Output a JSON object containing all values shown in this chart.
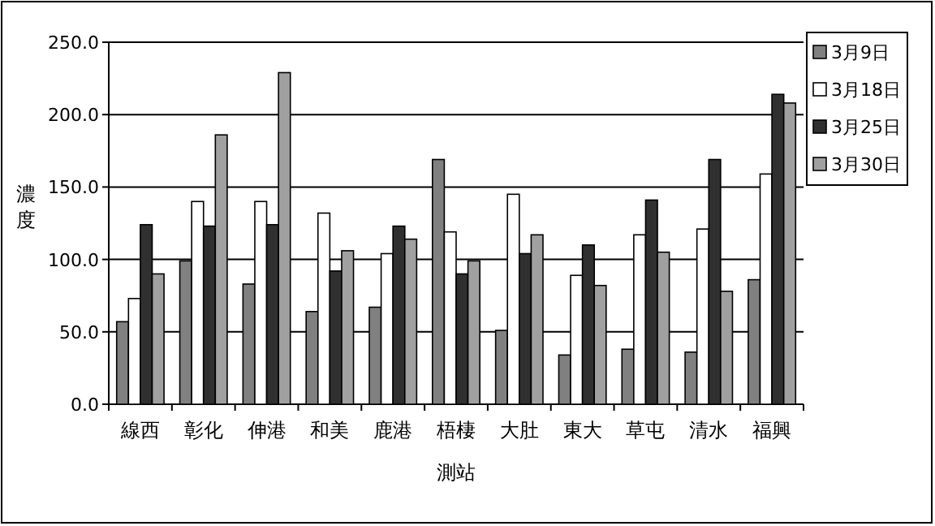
{
  "chart_data": {
    "type": "bar",
    "xlabel": "測站",
    "ylabel": "濃度",
    "categories": [
      "線西",
      "彰化",
      "伸港",
      "和美",
      "鹿港",
      "梧棲",
      "大肚",
      "東大",
      "草屯",
      "清水",
      "福興"
    ],
    "series": [
      {
        "name": "3月9日",
        "color": "#808080",
        "values": [
          57,
          99,
          83,
          64,
          67,
          169,
          51,
          34,
          38,
          36,
          86
        ]
      },
      {
        "name": "3月18日",
        "color": "#ffffff",
        "values": [
          73,
          140,
          140,
          132,
          104,
          119,
          145,
          89,
          117,
          121,
          159
        ]
      },
      {
        "name": "3月25日",
        "color": "#303030",
        "values": [
          124,
          123,
          124,
          92,
          123,
          90,
          104,
          110,
          141,
          169,
          214
        ]
      },
      {
        "name": "3月30日",
        "color": "#a0a0a0",
        "values": [
          90,
          186,
          229,
          106,
          114,
          99,
          117,
          82,
          105,
          78,
          208
        ]
      }
    ],
    "ylim": [
      0,
      250
    ],
    "yticks": [
      {
        "value": 0,
        "label": "0.0"
      },
      {
        "value": 50,
        "label": "50.0"
      },
      {
        "value": 100,
        "label": "100.0"
      },
      {
        "value": 150,
        "label": "150.0"
      },
      {
        "value": 200,
        "label": "200.0"
      },
      {
        "value": 250,
        "label": "250.0"
      }
    ],
    "grid": "y",
    "legend": "top right"
  }
}
